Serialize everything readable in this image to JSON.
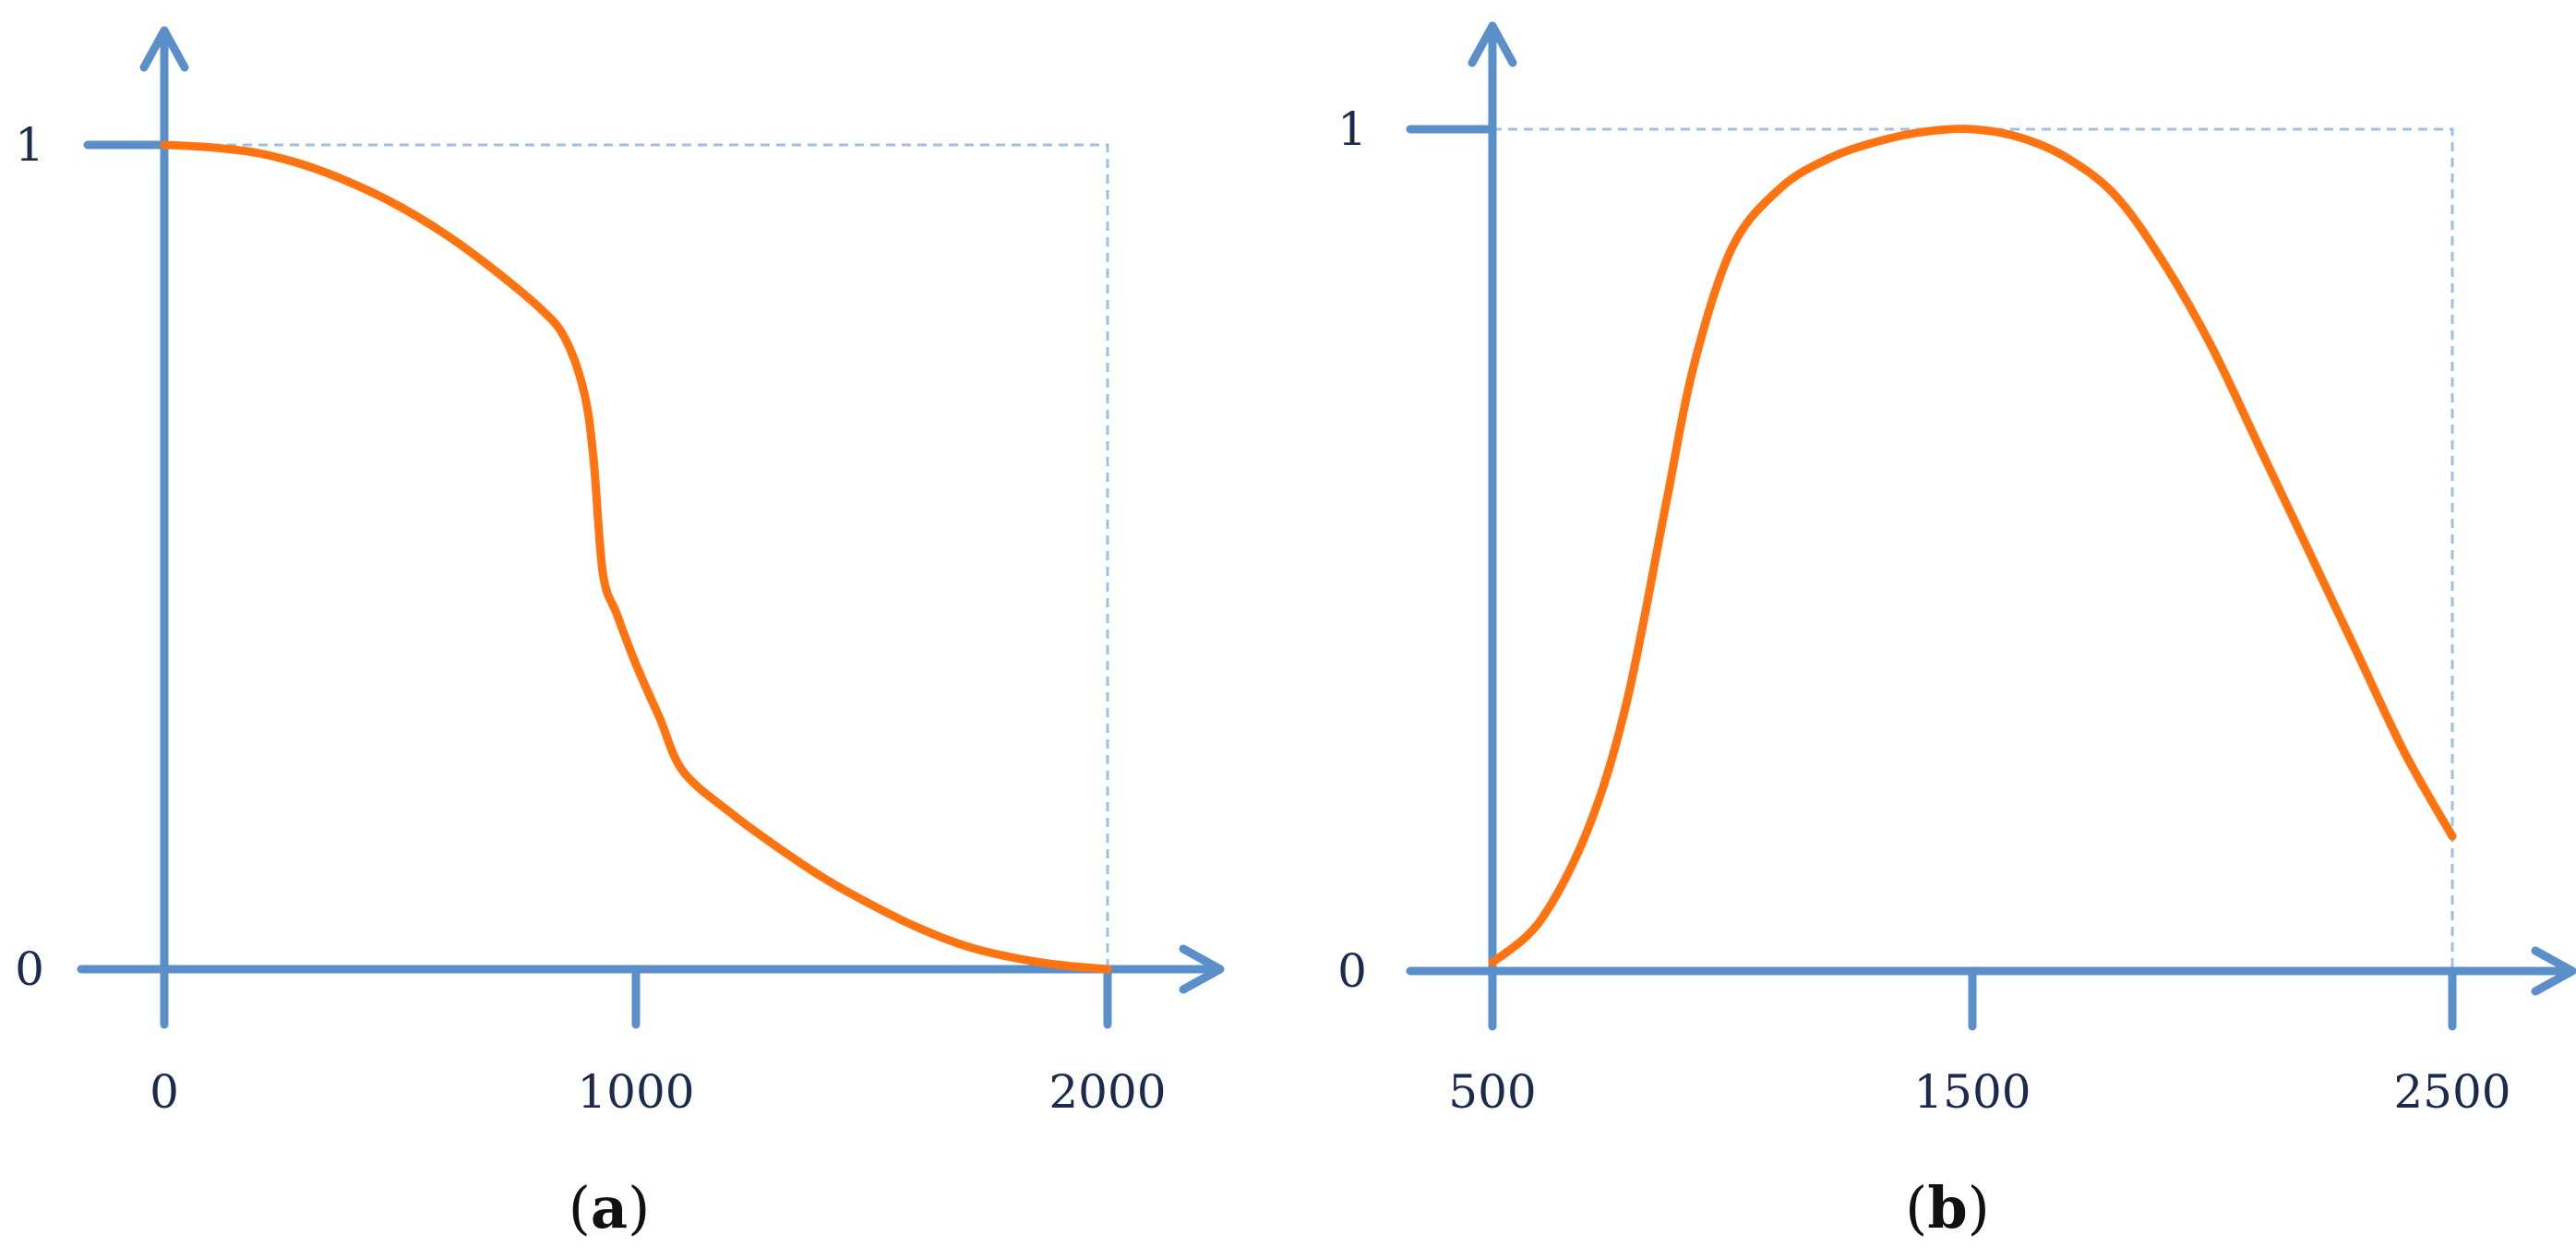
{
  "colors": {
    "axis": "#5b8fc9",
    "guide": "#9ec0e8",
    "curve": "#ff7310",
    "text": "#1c2a4e"
  },
  "chart_data": [
    {
      "type": "line",
      "panel_label": {
        "open": "(",
        "letter": "a",
        "close": ")"
      },
      "title": "",
      "xlabel": "",
      "ylabel": "",
      "xlim": [
        0,
        2000
      ],
      "ylim": [
        0,
        1
      ],
      "x_ticks": [
        "0",
        "1000",
        "2000"
      ],
      "y_ticks": [
        "0",
        "1"
      ],
      "grid": false,
      "guide_box": true,
      "series": [
        {
          "x": [
            0,
            100,
            200,
            300,
            400,
            500,
            600,
            700,
            800,
            850,
            890,
            910,
            930,
            960,
            1000,
            1050,
            1100,
            1200,
            1300,
            1400,
            1500,
            1600,
            1700,
            1800,
            1900,
            2000
          ],
          "y": [
            1.0,
            0.997,
            0.99,
            0.975,
            0.953,
            0.925,
            0.89,
            0.848,
            0.8,
            0.765,
            0.7,
            0.62,
            0.48,
            0.43,
            0.37,
            0.305,
            0.24,
            0.19,
            0.148,
            0.11,
            0.078,
            0.05,
            0.028,
            0.014,
            0.005,
            0.0
          ]
        }
      ]
    },
    {
      "type": "line",
      "panel_label": {
        "open": "(",
        "letter": "b",
        "close": ")"
      },
      "title": "",
      "xlabel": "",
      "ylabel": "",
      "xlim": [
        500,
        2500
      ],
      "ylim": [
        0,
        1
      ],
      "x_ticks": [
        "500",
        "1500",
        "2500"
      ],
      "y_ticks": [
        "0",
        "1"
      ],
      "grid": false,
      "guide_box": true,
      "series": [
        {
          "x": [
            500,
            600,
            700,
            780,
            860,
            920,
            1000,
            1100,
            1200,
            1300,
            1400,
            1500,
            1600,
            1700,
            1800,
            1900,
            2000,
            2100,
            2200,
            2300,
            2400,
            2500
          ],
          "y": [
            0.01,
            0.06,
            0.17,
            0.32,
            0.55,
            0.72,
            0.86,
            0.93,
            0.965,
            0.985,
            0.997,
            1.0,
            0.99,
            0.965,
            0.92,
            0.84,
            0.74,
            0.62,
            0.5,
            0.38,
            0.26,
            0.16
          ]
        }
      ]
    }
  ]
}
